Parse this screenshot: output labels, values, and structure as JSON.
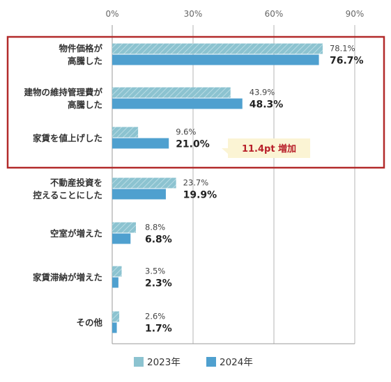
{
  "chart_data": {
    "type": "bar",
    "orientation": "horizontal",
    "title": "",
    "xlabel": "",
    "ylabel": "",
    "xlim": [
      0,
      90
    ],
    "x_ticks": [
      "0%",
      "30%",
      "60%",
      "90%"
    ],
    "grid": true,
    "legend_position": "bottom",
    "categories": [
      [
        "物件価格が",
        "高騰した"
      ],
      [
        "建物の維持管理費が",
        "高騰した"
      ],
      [
        "家賃を値上げした"
      ],
      [
        "不動産投資を",
        "控えることにした"
      ],
      [
        "空室が増えた"
      ],
      [
        "家賃滞納が増えた"
      ],
      [
        "その他"
      ]
    ],
    "series": [
      {
        "name": "2023年",
        "values": [
          78.1,
          43.9,
          9.6,
          23.7,
          8.8,
          3.5,
          2.6
        ],
        "labels": [
          "78.1%",
          "43.9%",
          "9.6%",
          "23.7%",
          "8.8%",
          "3.5%",
          "2.6%"
        ],
        "color": "#8cc3d0",
        "pattern": "diagonal-hatch"
      },
      {
        "name": "2024年",
        "values": [
          76.7,
          48.3,
          21.0,
          19.9,
          6.8,
          2.3,
          1.7
        ],
        "labels": [
          "76.7%",
          "48.3%",
          "21.0%",
          "19.9%",
          "6.8%",
          "2.3%",
          "1.7%"
        ],
        "color": "#4fa0cf",
        "pattern": "solid"
      }
    ],
    "highlight": {
      "categories": [
        0,
        1,
        2
      ],
      "border_color": "#b22a2a"
    },
    "callout": {
      "text": "11.4pt 増加",
      "category": 2,
      "background": "#fbf4d4",
      "text_color": "#b8202a"
    }
  }
}
